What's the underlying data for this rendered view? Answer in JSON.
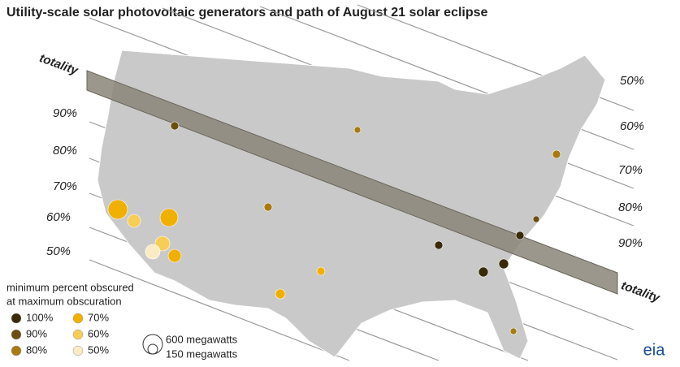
{
  "title": "Utility-scale solar photovoltaic generators and path of August 21 solar eclipse",
  "totality_labels": [
    "totality",
    "totality"
  ],
  "left_labels": [
    "90%",
    "80%",
    "70%",
    "60%",
    "50%"
  ],
  "right_labels": [
    "50%",
    "60%",
    "70%",
    "80%",
    "90%"
  ],
  "legend": {
    "title_lines": [
      "minimum percent obscured",
      "at maximum obscuration"
    ],
    "items": [
      {
        "label": "100%",
        "color": "#3b2a08"
      },
      {
        "label": "70%",
        "color": "#f0b000"
      },
      {
        "label": "90%",
        "color": "#6b4f12"
      },
      {
        "label": "60%",
        "color": "#f6cd55"
      },
      {
        "label": "80%",
        "color": "#a87a12"
      },
      {
        "label": "50%",
        "color": "#fbebc4"
      }
    ]
  },
  "size_legend": [
    "600 megawatts",
    "150 megawatts"
  ],
  "logo": "eia"
}
